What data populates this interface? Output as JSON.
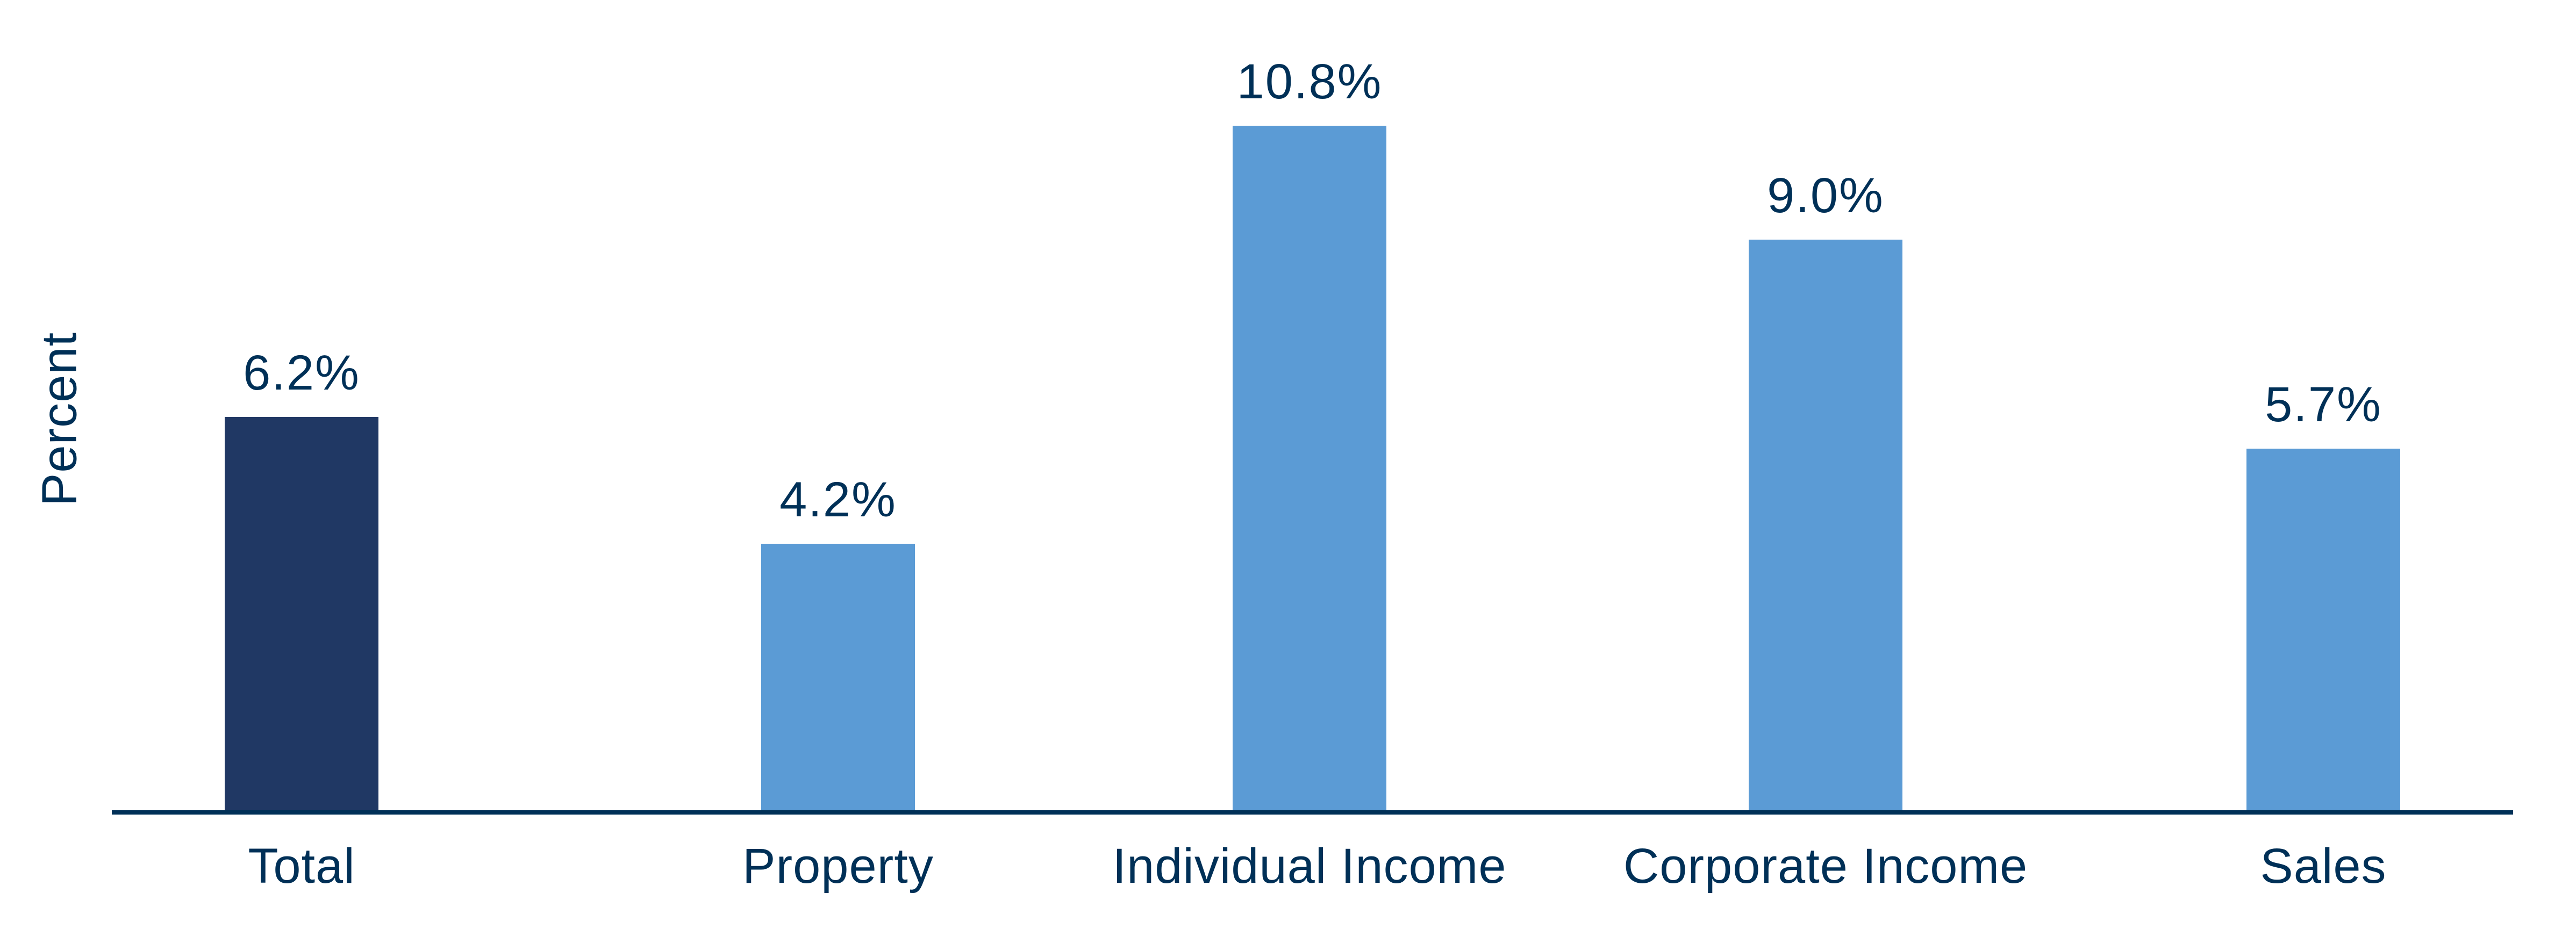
{
  "chart_data": {
    "type": "bar",
    "title": "",
    "xlabel": "",
    "ylabel": "Percent",
    "categories": [
      "Total",
      "Property",
      "Individual Income",
      "Corporate Income",
      "Sales"
    ],
    "values": [
      6.2,
      4.2,
      10.8,
      9.0,
      5.7
    ],
    "value_labels": [
      "6.2%",
      "4.2%",
      "10.8%",
      "9.0%",
      "5.7%"
    ],
    "unit": "%",
    "ylim": [
      0,
      11.5
    ],
    "grid": false,
    "y_ticks_visible": false,
    "legend": null,
    "colors": {
      "highlight_bar": "#203864",
      "bar": "#5B9BD5",
      "axis": "#003057",
      "text": "#003057"
    }
  },
  "labels": {
    "ylabel": "Percent",
    "values": [
      "6.2%",
      "4.2%",
      "10.8%",
      "9.0%",
      "5.7%"
    ],
    "categories": [
      "Total",
      "Property",
      "Individual Income",
      "Corporate Income",
      "Sales"
    ]
  }
}
